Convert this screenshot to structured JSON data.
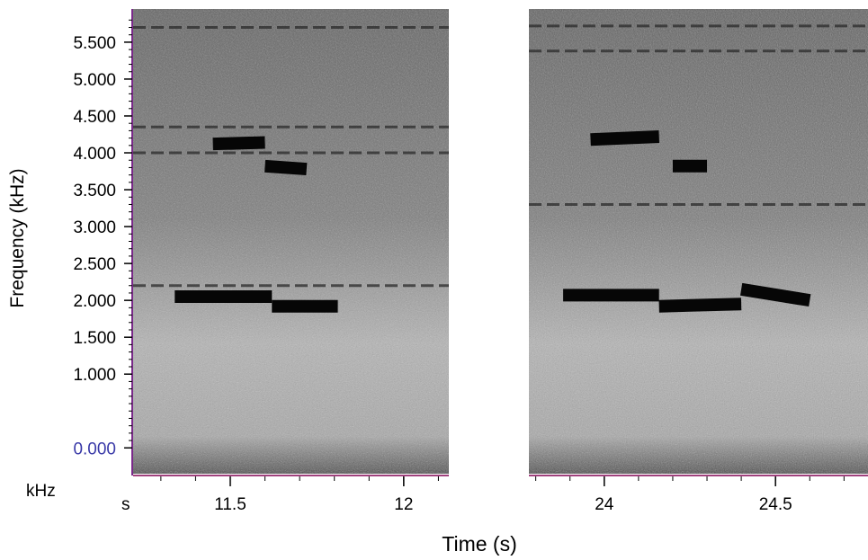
{
  "chart_data": {
    "type": "spectrogram",
    "ylabel": "Frequency (kHz)",
    "xlabel": "Time (s)",
    "y_unit_label": "kHz",
    "x_unit_label": "s",
    "ylim": [
      -0.35,
      5.95
    ],
    "y_ticks": [
      0.0,
      1.0,
      1.5,
      2.0,
      2.5,
      3.0,
      3.5,
      4.0,
      4.5,
      5.0,
      5.5
    ],
    "y_tick_labels": [
      "0.000",
      "1.000",
      "1.500",
      "2.000",
      "2.500",
      "3.000",
      "3.500",
      "4.000",
      "4.500",
      "5.000",
      "5.500"
    ],
    "y_zero_label_color": "#3a3aa8",
    "baseline_color": "#a0417d",
    "panels": [
      {
        "xlim": [
          11.22,
          12.13
        ],
        "x_ticks": [
          11.5,
          12
        ],
        "x_tick_labels": [
          "11.5",
          "12"
        ],
        "calls": [
          {
            "t": [
              11.34,
              11.62
            ],
            "f": [
              2.05,
              2.05
            ]
          },
          {
            "t": [
              11.62,
              11.81
            ],
            "f": [
              1.92,
              1.92
            ]
          },
          {
            "t": [
              11.6,
              11.72
            ],
            "f": [
              3.82,
              3.78
            ]
          },
          {
            "t": [
              11.45,
              11.6
            ],
            "f": [
              4.12,
              4.14
            ]
          }
        ],
        "bands": [
          5.7,
          4.35,
          4.0,
          2.2
        ]
      },
      {
        "xlim": [
          23.78,
          24.77
        ],
        "x_ticks": [
          24,
          24.5
        ],
        "x_tick_labels": [
          "24",
          "24.5"
        ],
        "calls": [
          {
            "t": [
              23.88,
              24.16
            ],
            "f": [
              2.07,
              2.07
            ]
          },
          {
            "t": [
              24.16,
              24.4
            ],
            "f": [
              1.92,
              1.95
            ]
          },
          {
            "t": [
              24.4,
              24.6
            ],
            "f": [
              2.15,
              2.0
            ]
          },
          {
            "t": [
              24.2,
              24.3
            ],
            "f": [
              3.82,
              3.82
            ]
          },
          {
            "t": [
              23.96,
              24.16
            ],
            "f": [
              4.18,
              4.22
            ]
          }
        ],
        "bands": [
          5.72,
          5.38,
          3.3
        ]
      }
    ]
  }
}
